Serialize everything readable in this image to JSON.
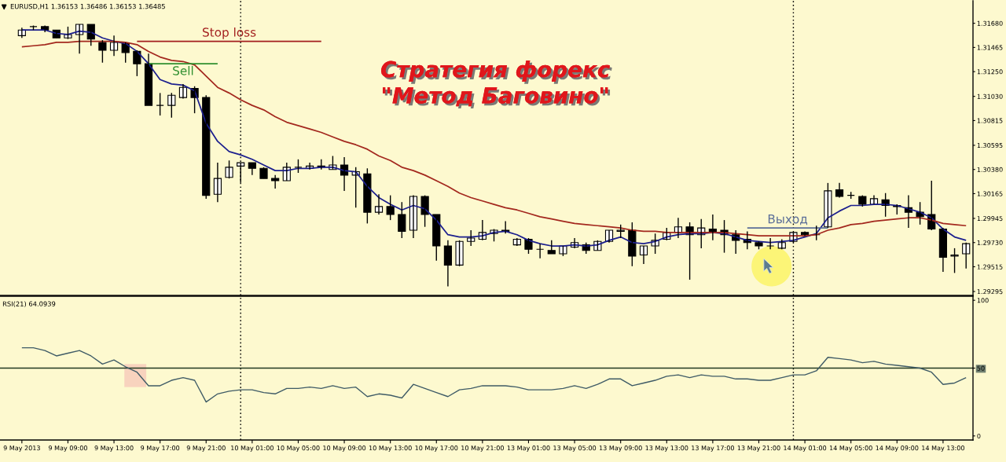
{
  "chart_data": [
    {
      "type": "candlestick",
      "title": "Стратегия форекс\n\"Метод Баговино\"",
      "subtitle": "EURUSD,H1 1.36153 1.36486 1.36153 1.36485",
      "categories": [
        null,
        null,
        null,
        null,
        null,
        null,
        null,
        null,
        null,
        null,
        null,
        null,
        null,
        null,
        null,
        null,
        null,
        null,
        null,
        null,
        null,
        null,
        null,
        null,
        null,
        null,
        null,
        null,
        null,
        null,
        null,
        null,
        null,
        null,
        null,
        null,
        null,
        null,
        null,
        null,
        null,
        null,
        null,
        null,
        null,
        null,
        null,
        null,
        null,
        null,
        null,
        null,
        null,
        null,
        null,
        null,
        null,
        null,
        null,
        null,
        null,
        null,
        null,
        null,
        null,
        null,
        null,
        null,
        null,
        null,
        null,
        null,
        null,
        null,
        null,
        null,
        null,
        null,
        null,
        null,
        null,
        null,
        null
      ],
      "ohlc": [
        [
          1.3157,
          1.3164,
          1.3155,
          1.3162
        ],
        [
          1.3165,
          1.3166,
          1.3162,
          1.3165
        ],
        [
          1.3165,
          1.3166,
          1.316,
          1.3162
        ],
        [
          1.3162,
          1.3162,
          1.3155,
          1.3155
        ],
        [
          1.3155,
          1.3165,
          1.3154,
          1.3158
        ],
        [
          1.3158,
          1.3167,
          1.3141,
          1.3167
        ],
        [
          1.3167,
          1.3167,
          1.3148,
          1.3154
        ],
        [
          1.3151,
          1.3153,
          1.3133,
          1.3144
        ],
        [
          1.3144,
          1.3157,
          1.3139,
          1.3151
        ],
        [
          1.315,
          1.3151,
          1.3133,
          1.3142
        ],
        [
          1.3143,
          1.3144,
          1.3121,
          1.3132
        ],
        [
          1.3132,
          1.3141,
          1.3095,
          1.3095
        ],
        [
          1.3095,
          1.3106,
          1.3086,
          1.3095
        ],
        [
          1.3095,
          1.3106,
          1.3084,
          1.3104
        ],
        [
          1.3102,
          1.3114,
          1.3101,
          1.3111
        ],
        [
          1.311,
          1.3112,
          1.3088,
          1.3102
        ],
        [
          1.3102,
          1.3104,
          1.3012,
          1.3015
        ],
        [
          1.3016,
          1.3044,
          1.3009,
          1.303
        ],
        [
          1.3031,
          1.3046,
          1.303,
          1.304
        ],
        [
          1.3041,
          1.3044,
          1.3026,
          1.3044
        ],
        [
          1.3044,
          1.3044,
          1.3033,
          1.3039
        ],
        [
          1.3039,
          1.304,
          1.303,
          1.303
        ],
        [
          1.303,
          1.3033,
          1.3021,
          1.3028
        ],
        [
          1.3028,
          1.3044,
          1.3028,
          1.304
        ],
        [
          1.304,
          1.3047,
          1.3035,
          1.304
        ],
        [
          1.3039,
          1.3044,
          1.3038,
          1.3041
        ],
        [
          1.3041,
          1.3047,
          1.3038,
          1.304
        ],
        [
          1.3038,
          1.305,
          1.3038,
          1.3042
        ],
        [
          1.3042,
          1.3049,
          1.3019,
          1.3033
        ],
        [
          1.3033,
          1.304,
          1.3004,
          1.3036
        ],
        [
          1.3034,
          1.3039,
          1.299,
          1.3
        ],
        [
          1.3,
          1.3016,
          1.2998,
          1.3005
        ],
        [
          1.3005,
          1.3015,
          1.2993,
          1.2998
        ],
        [
          1.2998,
          1.3009,
          1.2977,
          1.2983
        ],
        [
          1.2984,
          1.3015,
          1.2977,
          1.3014
        ],
        [
          1.3014,
          1.3015,
          1.2987,
          1.2998
        ],
        [
          1.2998,
          1.2998,
          1.2957,
          1.297
        ],
        [
          1.297,
          1.2975,
          1.2934,
          1.2953
        ],
        [
          1.2953,
          1.2975,
          1.2952,
          1.2974
        ],
        [
          1.2974,
          1.2984,
          1.297,
          1.2977
        ],
        [
          1.2976,
          1.2993,
          1.2975,
          1.2982
        ],
        [
          1.2981,
          1.2985,
          1.2974,
          1.2984
        ],
        [
          1.2984,
          1.2992,
          1.2981,
          1.2983
        ],
        [
          1.2971,
          1.2977,
          1.297,
          1.2976
        ],
        [
          1.2976,
          1.2977,
          1.2963,
          1.2967
        ],
        [
          1.2967,
          1.2972,
          1.2959,
          1.2967
        ],
        [
          1.2966,
          1.2975,
          1.2963,
          1.2963
        ],
        [
          1.2963,
          1.297,
          1.2961,
          1.297
        ],
        [
          1.2969,
          1.2977,
          1.2968,
          1.2973
        ],
        [
          1.2971,
          1.2973,
          1.2963,
          1.2966
        ],
        [
          1.2966,
          1.2975,
          1.2966,
          1.2974
        ],
        [
          1.2974,
          1.2984,
          1.2973,
          1.2984
        ],
        [
          1.2983,
          1.2989,
          1.2977,
          1.2984
        ],
        [
          1.2984,
          1.2991,
          1.2952,
          1.2961
        ],
        [
          1.2962,
          1.297,
          1.2954,
          1.297
        ],
        [
          1.297,
          1.2981,
          1.2963,
          1.2975
        ],
        [
          1.2976,
          1.2986,
          1.2975,
          1.2982
        ],
        [
          1.2982,
          1.2995,
          1.2977,
          1.2987
        ],
        [
          1.2987,
          1.2991,
          1.294,
          1.298
        ],
        [
          1.298,
          1.2994,
          1.2968,
          1.2986
        ],
        [
          1.2985,
          1.2998,
          1.2975,
          1.2982
        ],
        [
          1.2984,
          1.2993,
          1.2964,
          1.298
        ],
        [
          1.298,
          1.2984,
          1.2963,
          1.2975
        ],
        [
          1.2976,
          1.2983,
          1.2967,
          1.2973
        ],
        [
          1.2973,
          1.2974,
          1.2967,
          1.297
        ],
        [
          1.297,
          1.2977,
          1.2967,
          1.297
        ],
        [
          1.2968,
          1.2976,
          1.2967,
          1.2973
        ],
        [
          1.2974,
          1.2982,
          1.2973,
          1.2982
        ],
        [
          1.2982,
          1.2983,
          1.2979,
          1.298
        ],
        [
          1.298,
          1.2988,
          1.2975,
          1.298
        ],
        [
          1.2987,
          1.3026,
          1.2986,
          1.3019
        ],
        [
          1.302,
          1.3026,
          1.3013,
          1.3014
        ],
        [
          1.3015,
          1.3018,
          1.3012,
          1.3015
        ],
        [
          1.3014,
          1.3015,
          1.3005,
          1.3007
        ],
        [
          1.3007,
          1.3015,
          1.3007,
          1.3012
        ],
        [
          1.3011,
          1.3017,
          1.2996,
          1.3006
        ],
        [
          1.3006,
          1.3007,
          1.2998,
          1.3005
        ],
        [
          1.3004,
          1.3015,
          1.2986,
          1.3
        ],
        [
          1.3,
          1.3009,
          1.2989,
          1.2996
        ],
        [
          1.2998,
          1.3028,
          1.2984,
          1.2985
        ],
        [
          1.2985,
          1.2986,
          1.2947,
          1.296
        ],
        [
          1.2961,
          1.2968,
          1.2946,
          1.2962
        ],
        [
          1.2963,
          1.2973,
          1.295,
          1.2972
        ]
      ],
      "series": [
        {
          "type": "line",
          "color": "#1c1f8e",
          "values": [
            1.3162,
            1.3162,
            1.3162,
            1.3159,
            1.3158,
            1.3161,
            1.316,
            1.3155,
            1.3152,
            1.315,
            1.3143,
            1.3132,
            1.3118,
            1.3114,
            1.3113,
            1.3108,
            1.3079,
            1.3063,
            1.3054,
            1.3051,
            1.3047,
            1.3042,
            1.3037,
            1.3037,
            1.3039,
            1.3039,
            1.304,
            1.304,
            1.3037,
            1.3036,
            1.3023,
            1.3013,
            1.3007,
            1.3002,
            1.3006,
            1.3003,
            1.2993,
            1.298,
            1.2978,
            1.2978,
            1.2979,
            1.2982,
            1.2983,
            1.298,
            1.2975,
            1.2972,
            1.297,
            1.297,
            1.2971,
            1.297,
            1.2971,
            1.2975,
            1.2978,
            1.2973,
            1.2972,
            1.2974,
            1.2978,
            1.298,
            1.2981,
            1.2981,
            1.2982,
            1.2981,
            1.2978,
            1.2975,
            1.2974,
            1.2973,
            1.2974,
            1.2975,
            1.2978,
            1.2981,
            1.2995,
            1.3001,
            1.3006,
            1.3006,
            1.3007,
            1.3007,
            1.3006,
            1.3003,
            1.3,
            1.2995,
            1.2985,
            1.2978,
            1.2975
          ]
        },
        {
          "type": "line",
          "color": "#a3281e",
          "values": [
            1.3147,
            1.3148,
            1.3149,
            1.3151,
            1.3151,
            1.3152,
            1.3152,
            1.3152,
            1.3152,
            1.3151,
            1.3149,
            1.3143,
            1.3138,
            1.3135,
            1.3134,
            1.3131,
            1.3121,
            1.3111,
            1.3106,
            1.31,
            1.3095,
            1.3091,
            1.3085,
            1.308,
            1.3077,
            1.3074,
            1.3071,
            1.3067,
            1.3063,
            1.306,
            1.3056,
            1.305,
            1.3046,
            1.304,
            1.3037,
            1.3033,
            1.3028,
            1.3023,
            1.3017,
            1.3013,
            1.301,
            1.3007,
            1.3004,
            1.3002,
            1.2999,
            1.2996,
            1.2994,
            1.2992,
            1.299,
            1.2989,
            1.2988,
            1.2987,
            1.2986,
            1.2984,
            1.2983,
            1.2983,
            1.2982,
            1.2982,
            1.2982,
            1.2982,
            1.2982,
            1.2982,
            1.2981,
            1.298,
            1.2979,
            1.2979,
            1.2979,
            1.2979,
            1.2979,
            1.298,
            1.2984,
            1.2986,
            1.2989,
            1.299,
            1.2992,
            1.2993,
            1.2994,
            1.2995,
            1.2995,
            1.2993,
            1.299,
            1.2989,
            1.2988
          ]
        },
        {
          "type": "line",
          "name": "Stop loss",
          "color": "#a31f1f",
          "values": [
            null,
            null,
            null,
            null,
            null,
            null,
            null,
            null,
            null,
            null,
            1.3152,
            1.3152,
            1.3152,
            1.3152,
            1.3152,
            1.3152,
            1.3152,
            1.3152,
            1.3152,
            1.3152,
            1.3152,
            1.3152,
            1.3152,
            1.3152,
            1.3152,
            1.3152,
            1.3152,
            null,
            null,
            null,
            null,
            null,
            null,
            null,
            null,
            null,
            null,
            null,
            null,
            null,
            null,
            null,
            null,
            null,
            null,
            null,
            null,
            null,
            null,
            null,
            null,
            null,
            null,
            null,
            null,
            null,
            null,
            null,
            null,
            null,
            null,
            null,
            null,
            null,
            null,
            null,
            null,
            null,
            null,
            null,
            null,
            null,
            null,
            null,
            null,
            null,
            null,
            null,
            null,
            null,
            null,
            null,
            null
          ]
        },
        {
          "type": "line",
          "name": "Sell",
          "color": "#2f8f2f",
          "values": [
            null,
            null,
            null,
            null,
            null,
            null,
            null,
            null,
            null,
            null,
            null,
            1.3132,
            1.3132,
            1.3132,
            1.3132,
            1.3132,
            1.3132,
            1.3132,
            null,
            null,
            null,
            null,
            null,
            null,
            null,
            null,
            null,
            null,
            null,
            null,
            null,
            null,
            null,
            null,
            null,
            null,
            null,
            null,
            null,
            null,
            null,
            null,
            null,
            null,
            null,
            null,
            null,
            null,
            null,
            null,
            null,
            null,
            null,
            null,
            null,
            null,
            null,
            null,
            null,
            null,
            null,
            null,
            null,
            null,
            null,
            null,
            null,
            null,
            null,
            null,
            null,
            null,
            null,
            null,
            null,
            null,
            null,
            null,
            null,
            null,
            null,
            null,
            null
          ]
        },
        {
          "type": "line",
          "name": "Выход",
          "color": "#5b6e98",
          "values": [
            null,
            null,
            null,
            null,
            null,
            null,
            null,
            null,
            null,
            null,
            null,
            null,
            null,
            null,
            null,
            null,
            null,
            null,
            null,
            null,
            null,
            null,
            null,
            null,
            null,
            null,
            null,
            null,
            null,
            null,
            null,
            null,
            null,
            null,
            null,
            null,
            null,
            null,
            null,
            null,
            null,
            null,
            null,
            null,
            null,
            null,
            null,
            null,
            null,
            null,
            null,
            null,
            null,
            null,
            null,
            null,
            null,
            null,
            null,
            null,
            null,
            null,
            null,
            1.2986,
            1.2986,
            1.2986,
            1.2986,
            1.2986,
            1.2986,
            1.2986,
            1.2986,
            null,
            null,
            null,
            null,
            null,
            null,
            null,
            null,
            null,
            null,
            null,
            null
          ]
        }
      ],
      "ylim": [
        1.2926,
        1.3188
      ],
      "yticks": [
        {
          "value": 1.3168,
          "label": "1.31680"
        },
        1.31465,
        {
          "value": 1.3125,
          "label": "1.31250"
        },
        {
          "value": 1.3103,
          "label": "1.31030"
        },
        1.30815,
        1.30595,
        {
          "value": 1.3038,
          "label": "1.30380"
        },
        1.30165,
        1.29945,
        {
          "value": 1.2973,
          "label": "1.29730"
        },
        1.29515,
        1.29295
      ]
    },
    {
      "type": "line",
      "title": "RSI(21) 64.0939",
      "categories": [
        "9 May 2013",
        null,
        null,
        null,
        "9 May 09:00",
        null,
        null,
        null,
        "9 May 13:00",
        null,
        null,
        null,
        "9 May 17:00",
        null,
        null,
        null,
        "9 May 21:00",
        null,
        null,
        null,
        "10 May 01:00",
        null,
        null,
        null,
        "10 May 05:00",
        null,
        null,
        null,
        "10 May 09:00",
        null,
        null,
        null,
        "10 May 13:00",
        null,
        null,
        null,
        "10 May 17:00",
        null,
        null,
        null,
        "10 May 21:00",
        null,
        null,
        null,
        "13 May 01:00",
        null,
        null,
        null,
        "13 May 05:00",
        null,
        null,
        null,
        "13 May 09:00",
        null,
        null,
        null,
        "13 May 13:00",
        null,
        null,
        null,
        "13 May 17:00",
        null,
        null,
        null,
        "13 May 21:00",
        null,
        null,
        null,
        "14 May 01:00",
        null,
        null,
        null,
        "14 May 05:00",
        null,
        null,
        null,
        "14 May 09:00",
        null,
        null,
        null,
        "14 May 13:00",
        null,
        null
      ],
      "values": [
        65,
        65,
        63,
        59,
        61,
        63,
        59,
        53,
        56,
        51,
        47,
        37,
        37,
        41,
        43,
        41,
        25,
        31,
        33,
        34,
        34,
        32,
        31,
        35,
        35,
        36,
        35,
        37,
        35,
        36,
        29,
        31,
        30,
        28,
        38,
        35,
        32,
        29,
        34,
        35,
        37,
        37,
        37,
        36,
        34,
        34,
        34,
        35,
        37,
        35,
        38,
        42,
        42,
        37,
        39,
        41,
        44,
        45,
        43,
        45,
        44,
        44,
        42,
        42,
        41,
        41,
        43,
        45,
        45,
        48,
        58,
        57,
        56,
        54,
        55,
        53,
        52,
        51,
        50,
        47,
        38,
        39,
        43
      ],
      "color": "#3f5b66",
      "ylim": [
        -3,
        103
      ],
      "yticks": [
        0,
        50,
        100
      ],
      "ref_lines": [
        {
          "axis": "y",
          "value": 50,
          "color": "#223a22"
        }
      ]
    }
  ]
}
